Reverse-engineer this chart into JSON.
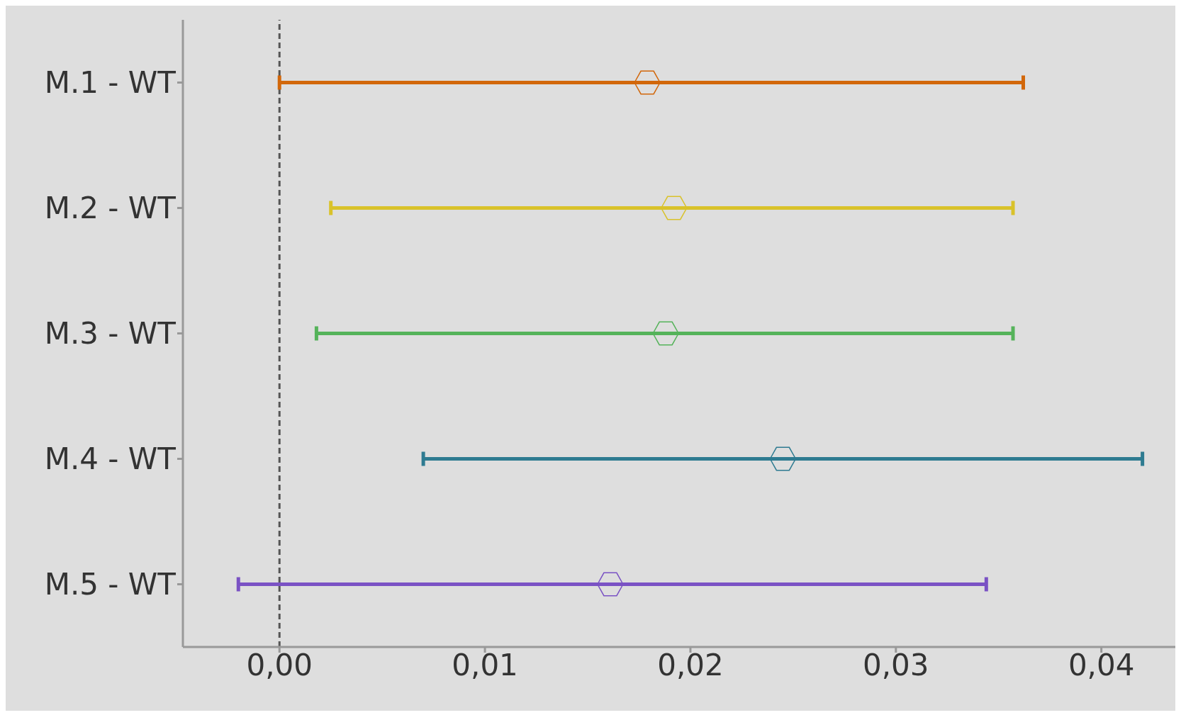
{
  "chart_data": {
    "type": "scatter",
    "orientation": "horizontal",
    "categories": [
      "M.1 - WT",
      "M.2 - WT",
      "M.3 - WT",
      "M.4 - WT",
      "M.5 - WT"
    ],
    "values": [
      0.0179,
      0.0192,
      0.0188,
      0.0245,
      0.0161
    ],
    "errors": [
      [
        0.0,
        0.0362
      ],
      [
        0.0025,
        0.0357
      ],
      [
        0.0018,
        0.0357
      ],
      [
        0.007,
        0.042
      ],
      [
        -0.002,
        0.0344
      ]
    ],
    "colors": [
      "#d2670a",
      "#d9c22a",
      "#55b35a",
      "#2e7b91",
      "#7a52c4"
    ],
    "marker": "diamond",
    "xlim": [
      -0.0047,
      0.0436
    ],
    "xticks": [
      {
        "value": 0,
        "label": "0,00"
      },
      {
        "value": 0.01,
        "label": "0,01"
      },
      {
        "value": 0.02,
        "label": "0,02"
      },
      {
        "value": 0.03,
        "label": "0,03"
      },
      {
        "value": 0.04,
        "label": "0,04"
      }
    ],
    "ref_lines": [
      {
        "axis": "x",
        "value": 0,
        "color": "#555555",
        "line_style": "dashed"
      }
    ],
    "grid": false
  }
}
